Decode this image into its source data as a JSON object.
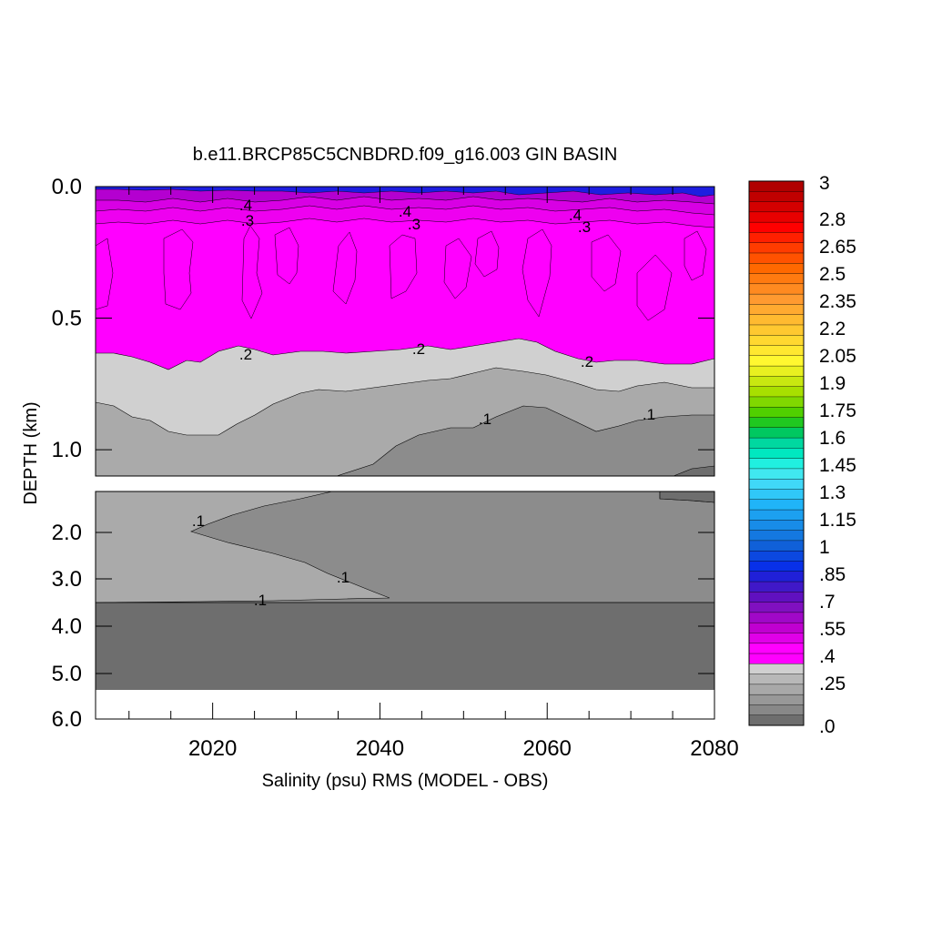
{
  "chart_data": {
    "type": "heatmap",
    "title": "b.e11.BRCP85C5CNBDRD.f09_g16.003 GIN BASIN",
    "xlabel": "Salinity (psu) RMS (MODEL - OBS)",
    "ylabel": "DEPTH (km)",
    "xlim": [
      2006,
      2080
    ],
    "x_ticks": [
      "2020",
      "2040",
      "2060",
      "2080"
    ],
    "upper_panel": {
      "ylim": [
        0.0,
        1.1
      ],
      "y_ticks": [
        "0.0",
        "0.5",
        "1.0"
      ],
      "contour_labels": [
        ".4",
        ".3",
        ".4",
        ".3",
        ".4",
        ".3",
        ".2",
        ".2",
        ".2",
        ".1",
        ".1"
      ]
    },
    "lower_panel": {
      "ylim": [
        1.1,
        6.0
      ],
      "y_ticks": [
        "2.0",
        "3.0",
        "4.0",
        "5.0",
        "6.0"
      ],
      "contour_labels": [
        ".1",
        ".1",
        ".1"
      ]
    },
    "colorbar": {
      "labels": [
        "3",
        "2.8",
        "2.65",
        "2.5",
        "2.35",
        "2.2",
        "2.05",
        "1.9",
        "1.75",
        "1.6",
        "1.45",
        "1.3",
        "1.15",
        "1",
        ".85",
        ".7",
        ".55",
        ".4",
        ".25",
        ".0"
      ],
      "colors": [
        "#b00000",
        "#c00000",
        "#d40000",
        "#e80000",
        "#ff0000",
        "#ff2000",
        "#ff3c00",
        "#ff5200",
        "#ff6800",
        "#ff7a10",
        "#ff8a20",
        "#ff9a30",
        "#ffaa30",
        "#ffba30",
        "#ffc830",
        "#ffd830",
        "#ffe830",
        "#fff830",
        "#e8f020",
        "#c8e810",
        "#a8e000",
        "#80d800",
        "#50d000",
        "#20c820",
        "#00c860",
        "#00d8a0",
        "#00e8c0",
        "#20f0e0",
        "#40e8f0",
        "#40d8f8",
        "#30c8f8",
        "#20b4f8",
        "#1ca0f0",
        "#188ce8",
        "#1478e0",
        "#1060d8",
        "#0c48e0",
        "#0830e8",
        "#2020d8",
        "#4018c8",
        "#6010c0",
        "#8010c0",
        "#a008c8",
        "#c000d0",
        "#e000e8",
        "#ff00ff",
        "#ff00ff",
        "#d0d0d0",
        "#b8b8b8",
        "#a8a8a8",
        "#989898",
        "#888888",
        "#6e6e6e"
      ]
    },
    "fill_colors": {
      "magenta": "#ff00ff",
      "light_gray": "#d0d0d0",
      "mid_gray": "#aaaaaa",
      "gray": "#8c8c8c",
      "dark_gray": "#6e6e6e",
      "blue": "#1e1ee0"
    }
  }
}
